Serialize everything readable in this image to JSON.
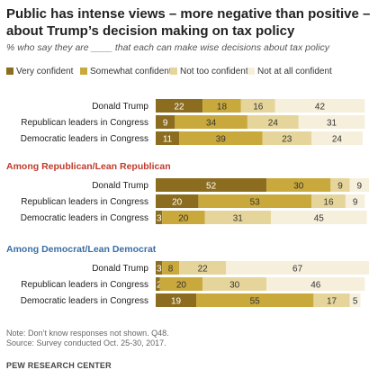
{
  "title": "Public has intense views – more negative than positive – about Trump’s decision making on tax policy",
  "subtitle": "% who say they are ____ that each can make wise decisions about tax policy",
  "legend": [
    {
      "label": "Very confident",
      "color": "#8c6d1f"
    },
    {
      "label": "Somewhat confident",
      "color": "#c9a93c"
    },
    {
      "label": "Not too confident",
      "color": "#e6d59a"
    },
    {
      "label": "Not at all confident",
      "color": "#f6efdc"
    }
  ],
  "chart_data": {
    "type": "bar",
    "orientation": "horizontal",
    "stacked": true,
    "series_names": [
      "Very confident",
      "Somewhat confident",
      "Not too confident",
      "Not at all confident"
    ],
    "groups": [
      {
        "heading": "",
        "rows": [
          {
            "label": "Donald Trump",
            "values": [
              22,
              18,
              16,
              42
            ]
          },
          {
            "label": "Republican leaders in Congress",
            "values": [
              9,
              34,
              24,
              31
            ]
          },
          {
            "label": "Democratic leaders in Congress",
            "values": [
              11,
              39,
              23,
              24
            ]
          }
        ]
      },
      {
        "heading": "Among Republican/Lean Republican",
        "heading_color": "#c0392b",
        "rows": [
          {
            "label": "Donald Trump",
            "values": [
              52,
              30,
              9,
              9
            ]
          },
          {
            "label": "Republican leaders in Congress",
            "values": [
              20,
              53,
              16,
              9
            ]
          },
          {
            "label": "Democratic leaders in Congress",
            "values": [
              3,
              20,
              31,
              45
            ]
          }
        ]
      },
      {
        "heading": "Among Democrat/Lean Democrat",
        "heading_color": "#3b6ea5",
        "rows": [
          {
            "label": "Donald Trump",
            "values": [
              3,
              8,
              22,
              67
            ]
          },
          {
            "label": "Republican leaders in Congress",
            "values": [
              2,
              20,
              30,
              46
            ]
          },
          {
            "label": "Democratic leaders in Congress",
            "values": [
              19,
              55,
              17,
              5
            ]
          }
        ]
      }
    ],
    "xlim": [
      0,
      100
    ]
  },
  "notes": [
    "Note: Don’t know responses not shown. Q48.",
    "Source: Survey conducted Oct. 25-30, 2017."
  ],
  "source_org": "PEW RESEARCH CENTER"
}
